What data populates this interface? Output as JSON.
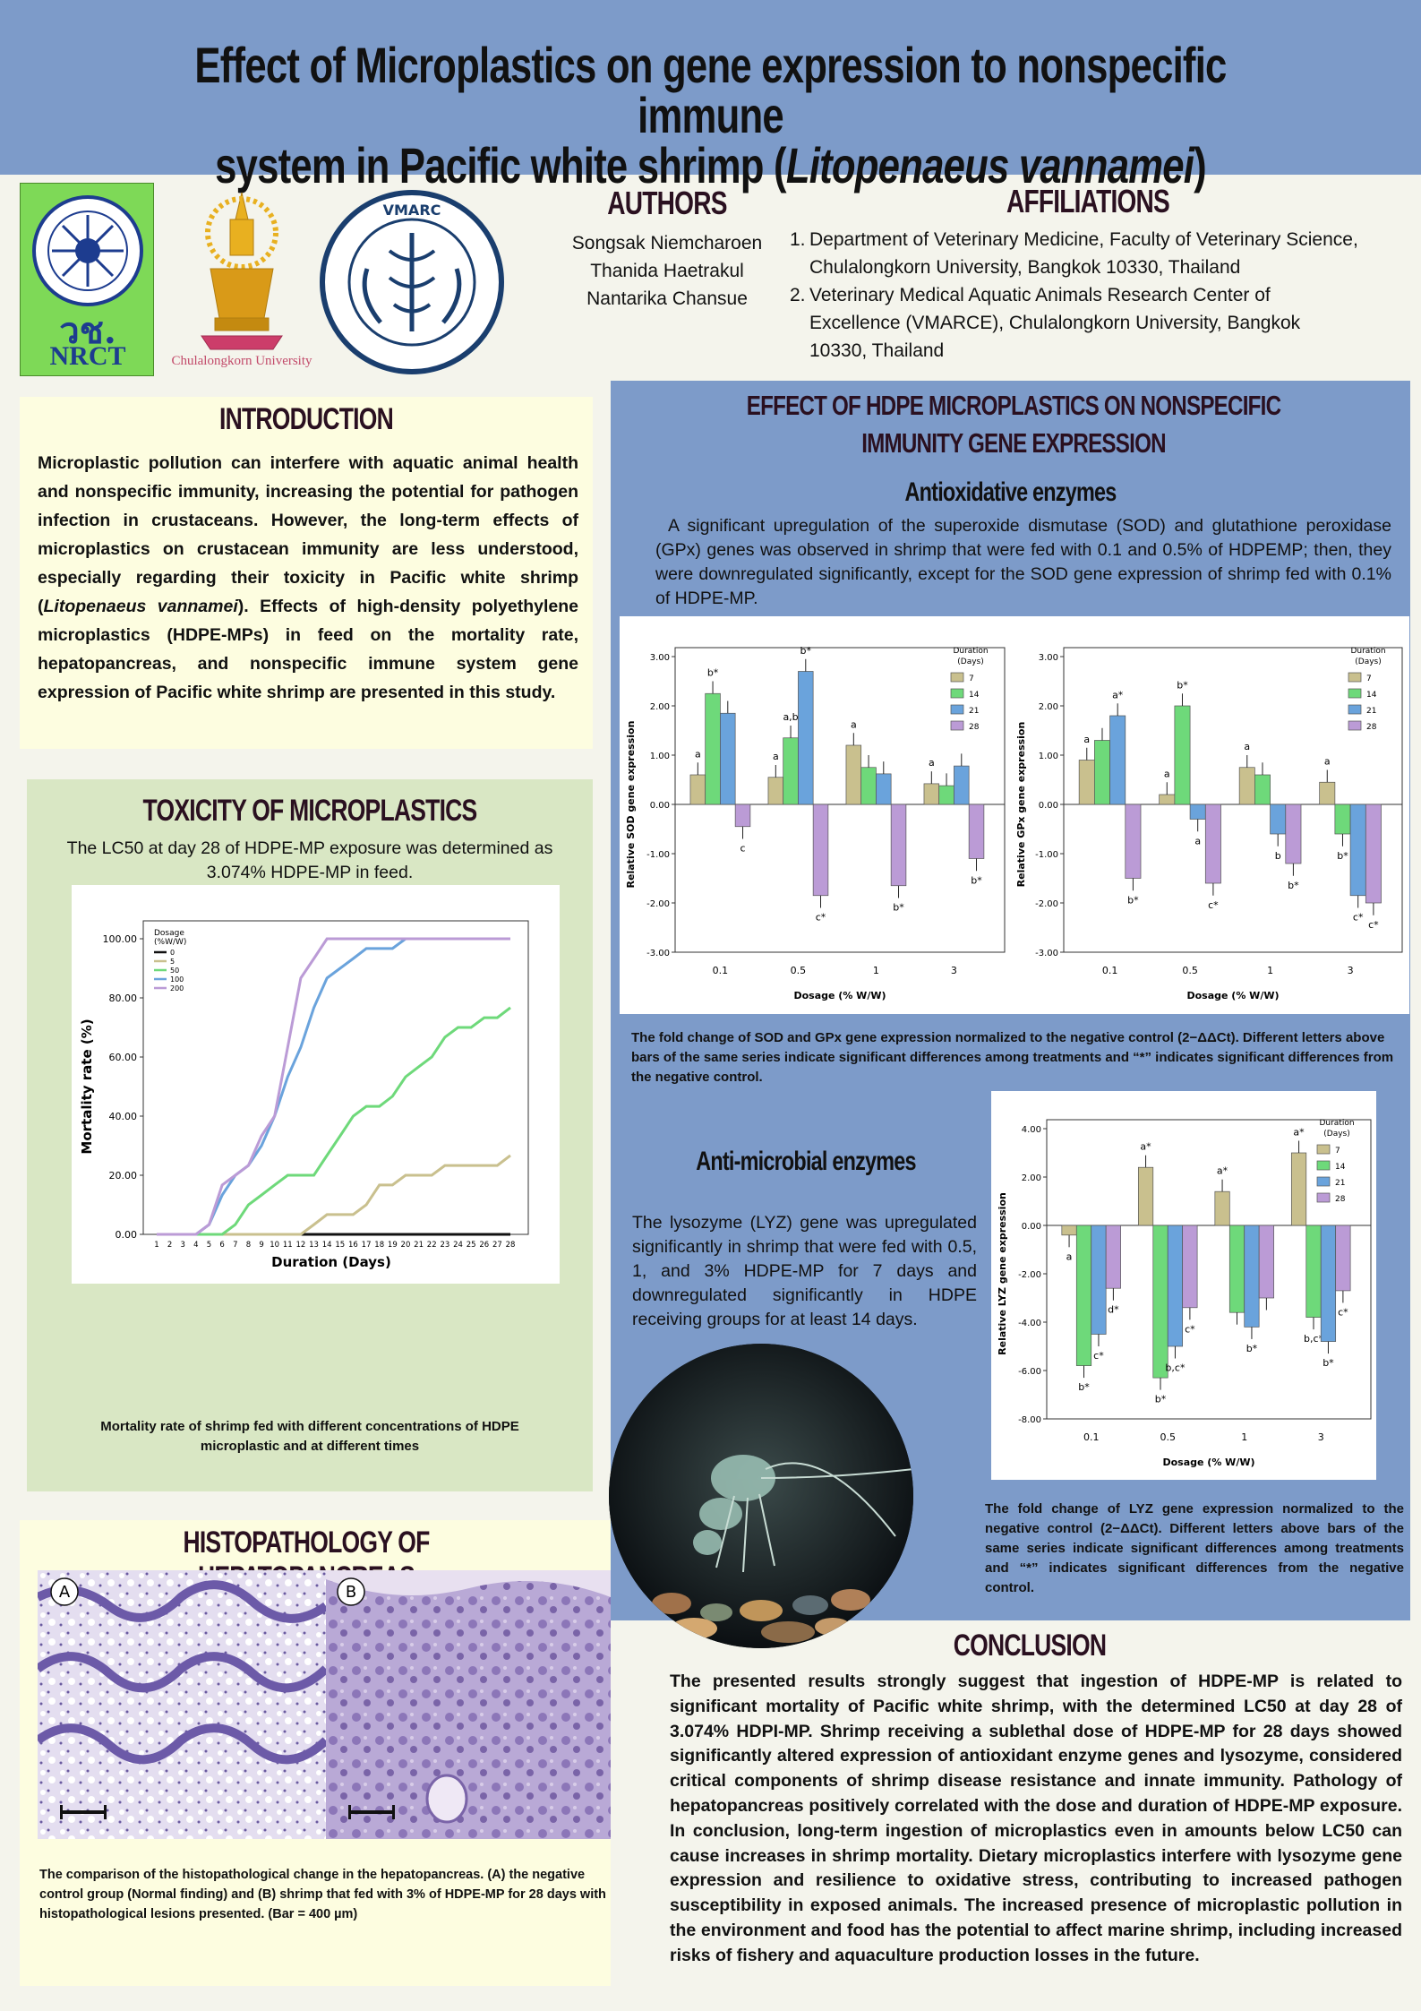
{
  "title": {
    "line1": "Effect of Microplastics on gene expression to nonspecific immune",
    "line2_pre": "system in Pacific white shrimp (",
    "line2_italic": "Litopenaeus vannamei",
    "line2_post": ")"
  },
  "logos": {
    "nrct_thai": "วช.",
    "nrct": "NRCT",
    "chula": "Chulalongkorn University",
    "vmarc": "VMARC"
  },
  "authors": {
    "heading": "AUTHORS",
    "names": [
      "Songsak Niemcharoen",
      "Thanida Haetrakul",
      "Nantarika Chansue"
    ]
  },
  "affiliations": {
    "heading": "AFFILIATIONS",
    "items": [
      "Department of Veterinary Medicine, Faculty of Veterinary Science, Chulalongkorn University, Bangkok 10330, Thailand",
      "Veterinary Medical Aquatic Animals Research Center of Excellence (VMARCE), Chulalongkorn University, Bangkok 10330, Thailand"
    ]
  },
  "introduction": {
    "heading": "INTRODUCTION",
    "text_a": "Microplastic pollution can interfere with aquatic animal health and nonspecific immunity, increasing the potential for pathogen infection in crustaceans. However, the long-term effects of microplastics on crustacean immunity are less understood, especially regarding their toxicity in Pacific white shrimp (",
    "text_italic": "Litopenaeus vannamei",
    "text_b": "). Effects of high-density polyethylene microplastics (HDPE-MPs) in feed on the mortality rate, hepatopancreas, and nonspecific immune system gene expression of Pacific white shrimp are presented in this study."
  },
  "toxicity": {
    "heading": "TOXICITY OF MICROPLASTICS",
    "text": "The LC50 at day 28 of HDPE-MP exposure was determined as 3.074% HDPE-MP in feed.",
    "caption": "Mortality rate of shrimp fed with different concentrations of HDPE microplastic and at different times"
  },
  "histopathology": {
    "heading": "HISTOPATHOLOGY OF HEPATOPANCREAS",
    "label_a": "A",
    "label_b": "B",
    "caption": "The comparison of the histopathological change in the hepatopancreas. (A) the negative control group (Normal finding) and (B) shrimp that fed with 3% of HDPE-MP for 28 days with histopathological lesions presented. (Bar = 400 µm)"
  },
  "effect": {
    "heading_line1": "EFFECT OF HDPE MICROPLASTICS ON NONSPECIFIC",
    "heading_line2": "IMMUNITY GENE EXPRESSION",
    "antiox_heading": "Antioxidative enzymes",
    "antiox_text": "A significant upregulation of the superoxide dismutase (SOD) and glutathione peroxidase (GPx) genes was observed in shrimp that were fed with 0.1 and 0.5% of HDPEMP; then, they were downregulated significantly, except for the SOD gene expression of shrimp fed with 0.1% of HDPE-MP.",
    "antiox_caption": "The fold change of SOD and GPx gene expression normalized to the negative control (2−ΔΔCt). Different letters above bars of the same series indicate significant differences among treatments and “*” indicates significant differences from the negative control.",
    "antimic_heading": "Anti-microbial enzymes",
    "antimic_text": "The lysozyme (LYZ) gene was upregulated significantly in shrimp that were fed with 0.5, 1, and 3% HDPE-MP for 7 days and downregulated significantly in HDPE receiving groups for at least 14 days.",
    "lyz_caption": "The fold change of LYZ gene expression normalized to the negative control (2−ΔΔCt). Different letters above bars of the same series indicate significant differences among treatments and “*” indicates significant differences from the negative control."
  },
  "conclusion": {
    "heading": "CONCLUSION",
    "text": "The presented results strongly suggest that ingestion of HDPE-MP is related to significant mortality of Pacific white shrimp, with the determined LC50 at day 28 of 3.074% HDPI-MP. Shrimp receiving a sublethal dose of HDPE-MP for 28 days showed significantly altered expression of antioxidant enzyme genes and lysozyme, considered critical components of shrimp disease resistance and innate immunity. Pathology of hepatopancreas positively correlated with the dose and duration of HDPE-MP exposure. In conclusion, long-term ingestion of microplastics even in amounts below LC50 can cause increases in shrimp mortality. Dietary microplastics interfere with lysozyme gene expression and resilience to oxidative stress, contributing to increased pathogen susceptibility in exposed animals. The increased presence of microplastic pollution in the environment and food has the potential to affect marine shrimp, including increased risks of fishery and aquaculture production losses in the future."
  },
  "colors": {
    "header": "#7d9bc9",
    "intro_bg": "#fdfde0",
    "tox_bg": "#d9e7c4",
    "effect_bg": "#7d9bc9",
    "series_7": "#c9c08e",
    "series_14": "#6ed97a",
    "series_21": "#6aa3dc",
    "series_28": "#bb9bd6"
  },
  "chart_data": [
    {
      "type": "line",
      "xlabel": "Duration (Days)",
      "ylabel": "Mortality rate (%)",
      "legend_title": "Dosage (%W/W)",
      "legend_placement": "top-left",
      "x": [
        1,
        2,
        3,
        4,
        5,
        6,
        7,
        8,
        9,
        10,
        11,
        12,
        13,
        14,
        15,
        16,
        17,
        18,
        19,
        20,
        21,
        22,
        23,
        24,
        25,
        26,
        27,
        28
      ],
      "ylim": [
        0,
        100
      ],
      "yticks": [
        "0.00",
        "20.00",
        "40.00",
        "60.00",
        "80.00",
        "100.00"
      ],
      "series": [
        {
          "name": "0",
          "color": "#111111",
          "values": [
            0,
            0,
            0,
            0,
            0,
            0,
            0,
            0,
            0,
            0,
            0,
            0,
            0,
            0,
            0,
            0,
            0,
            0,
            0,
            0,
            0,
            0,
            0,
            0,
            0,
            0,
            0,
            0
          ]
        },
        {
          "name": "5",
          "color": "#c9c08e",
          "values": [
            0,
            0,
            0,
            0,
            0,
            0,
            0,
            0,
            0,
            0,
            0,
            0,
            3.3,
            6.7,
            6.7,
            6.7,
            10,
            16.7,
            16.7,
            20,
            20,
            20,
            23.3,
            23.3,
            23.3,
            23.3,
            23.3,
            26.7
          ]
        },
        {
          "name": "50",
          "color": "#6ed97a",
          "values": [
            0,
            0,
            0,
            0,
            0,
            0,
            3.3,
            10,
            13.3,
            16.7,
            20,
            20,
            20,
            26.7,
            33.3,
            40,
            43.3,
            43.3,
            46.7,
            53.3,
            56.7,
            60,
            66.7,
            70,
            70,
            73.3,
            73.3,
            76.7
          ]
        },
        {
          "name": "100",
          "color": "#6aa3dc",
          "values": [
            0,
            0,
            0,
            0,
            3.3,
            13.3,
            20,
            23.3,
            30,
            40,
            53.3,
            63.3,
            76.7,
            86.7,
            90,
            93.3,
            96.7,
            96.7,
            96.7,
            100,
            100,
            100,
            100,
            100,
            100,
            100,
            100,
            100
          ]
        },
        {
          "name": "200",
          "color": "#bb9bd6",
          "values": [
            0,
            0,
            0,
            0,
            3.3,
            16.7,
            20,
            23.3,
            33.3,
            40,
            63.3,
            86.7,
            93.3,
            100,
            100,
            100,
            100,
            100,
            100,
            100,
            100,
            100,
            100,
            100,
            100,
            100,
            100,
            100
          ]
        }
      ]
    },
    {
      "type": "bar",
      "ylabel": "Relative SOD gene expression",
      "xlabel": "Dosage (% W/W)",
      "legend_title": "Duration (Days)",
      "categories": [
        "0.1",
        "0.5",
        "1",
        "3"
      ],
      "ylim": [
        -3,
        3
      ],
      "yticks": [
        "3.00",
        "2.00",
        "1.00",
        "0.00",
        "-1.00",
        "-2.00",
        "-3.00"
      ],
      "series": [
        {
          "name": "7",
          "values": [
            0.6,
            0.55,
            1.2,
            0.42
          ],
          "labels": [
            "a",
            "a",
            "a",
            "a"
          ]
        },
        {
          "name": "14",
          "values": [
            2.25,
            1.35,
            0.75,
            0.38
          ],
          "labels": [
            "b*",
            "a,b",
            "",
            ""
          ]
        },
        {
          "name": "21",
          "values": [
            1.85,
            2.7,
            0.62,
            0.78
          ],
          "labels": [
            "",
            "b*",
            "",
            ""
          ]
        },
        {
          "name": "28",
          "values": [
            -0.45,
            -1.85,
            -1.65,
            -1.1
          ],
          "labels": [
            "c",
            "c*",
            "b*",
            "b*"
          ]
        }
      ]
    },
    {
      "type": "bar",
      "ylabel": "Relative GPx gene expression",
      "xlabel": "Dosage (% W/W)",
      "legend_title": "Duration (Days)",
      "categories": [
        "0.1",
        "0.5",
        "1",
        "3"
      ],
      "ylim": [
        -3,
        3
      ],
      "yticks": [
        "3.00",
        "2.00",
        "1.00",
        "0.00",
        "-1.00",
        "-2.00",
        "-3.00"
      ],
      "series": [
        {
          "name": "7",
          "values": [
            0.9,
            0.2,
            0.75,
            0.45
          ],
          "labels": [
            "a",
            "a",
            "a",
            "a"
          ]
        },
        {
          "name": "14",
          "values": [
            1.3,
            2.0,
            0.6,
            -0.6
          ],
          "labels": [
            "",
            "b*",
            "",
            "b*"
          ]
        },
        {
          "name": "21",
          "values": [
            1.8,
            -0.3,
            -0.6,
            -1.85
          ],
          "labels": [
            "a*",
            "a",
            "b",
            "c*"
          ]
        },
        {
          "name": "28",
          "values": [
            -1.5,
            -1.6,
            -1.2,
            -2.0
          ],
          "labels": [
            "b*",
            "c*",
            "b*",
            "c*"
          ]
        }
      ]
    },
    {
      "type": "bar",
      "ylabel": "Relative LYZ gene expression",
      "xlabel": "Dosage (% W/W)",
      "legend_title": "Duration (Days)",
      "categories": [
        "0.1",
        "0.5",
        "1",
        "3"
      ],
      "ylim": [
        -8,
        4
      ],
      "yticks": [
        "4.00",
        "2.00",
        "0.00",
        "-2.00",
        "-4.00",
        "-6.00",
        "-8.00"
      ],
      "series": [
        {
          "name": "7",
          "values": [
            -0.4,
            2.4,
            1.4,
            3.0
          ],
          "labels": [
            "a",
            "a*",
            "a*",
            "a*"
          ]
        },
        {
          "name": "14",
          "values": [
            -5.8,
            -6.3,
            -3.6,
            -3.8
          ],
          "labels": [
            "b*",
            "b*",
            "",
            "b,c*"
          ]
        },
        {
          "name": "21",
          "values": [
            -4.5,
            -5.0,
            -4.2,
            -4.8
          ],
          "labels": [
            "c*",
            "b,c*",
            "b*",
            "b*"
          ]
        },
        {
          "name": "28",
          "values": [
            -2.6,
            -3.4,
            -3.0,
            -2.7
          ],
          "labels": [
            "d*",
            "c*",
            "",
            "c*"
          ]
        }
      ]
    }
  ]
}
